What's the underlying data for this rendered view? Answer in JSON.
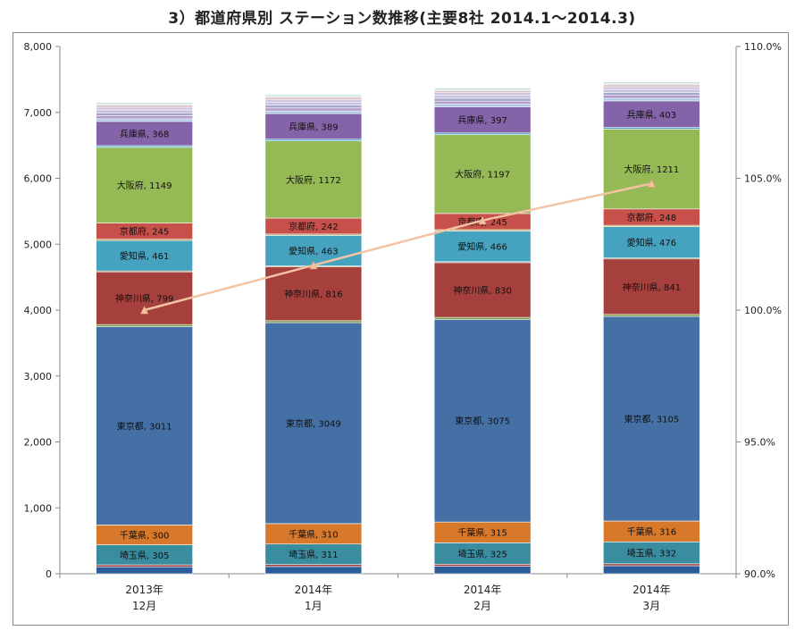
{
  "title": "3）都道府県別 ステーション数推移(主要8社 2014.1～2014.3)",
  "chart_data": {
    "type": "bar",
    "stacked": true,
    "categories": [
      [
        "2013年",
        "12月"
      ],
      [
        "2014年",
        "1月"
      ],
      [
        "2014年",
        "2月"
      ],
      [
        "2014年",
        "3月"
      ]
    ],
    "series": [
      {
        "name": "",
        "values": [
          105,
          110,
          115,
          122
        ],
        "color": "#2a5d9a"
      },
      {
        "name": "",
        "values": [
          30,
          30,
          30,
          30
        ],
        "color": "#9e3b38"
      },
      {
        "name": "埼玉県",
        "values": [
          305,
          311,
          325,
          332
        ],
        "color": "#3a8c9f",
        "show_label": true
      },
      {
        "name": "千葉県",
        "values": [
          300,
          310,
          315,
          316
        ],
        "color": "#d8782a",
        "show_label": true
      },
      {
        "name": "東京都",
        "values": [
          3011,
          3049,
          3075,
          3105
        ],
        "color": "#4470a6",
        "show_label": true
      },
      {
        "name": "",
        "values": [
          30,
          30,
          30,
          30
        ],
        "color": "#7a9a40"
      },
      {
        "name": "神奈川県",
        "values": [
          799,
          816,
          830,
          841
        ],
        "color": "#a6403c",
        "show_label": true
      },
      {
        "name": "",
        "values": [
          15,
          15,
          15,
          15
        ],
        "color": "#8a7a45"
      },
      {
        "name": "愛知県",
        "values": [
          461,
          463,
          466,
          476
        ],
        "color": "#45a3c0",
        "show_label": true
      },
      {
        "name": "",
        "values": [
          20,
          20,
          20,
          20
        ],
        "color": "#b89a40"
      },
      {
        "name": "京都府",
        "values": [
          245,
          242,
          245,
          248
        ],
        "color": "#c8504a",
        "show_label": true
      },
      {
        "name": "大阪府",
        "values": [
          1149,
          1172,
          1197,
          1211
        ],
        "color": "#95b955",
        "show_label": true
      },
      {
        "name": "",
        "values": [
          25,
          25,
          25,
          25
        ],
        "color": "#4aa7c8"
      },
      {
        "name": "兵庫県",
        "values": [
          368,
          389,
          397,
          403
        ],
        "color": "#8563a8",
        "show_label": true
      },
      {
        "name": "",
        "values": [
          40,
          40,
          40,
          40
        ],
        "color": "#a9c7e4"
      },
      {
        "name": "",
        "values": [
          45,
          45,
          45,
          45
        ],
        "color": "#b39bcb"
      },
      {
        "name": "",
        "values": [
          45,
          45,
          45,
          45
        ],
        "color": "#a6a6c8"
      },
      {
        "name": "",
        "values": [
          45,
          45,
          45,
          45
        ],
        "color": "#c9bfe0"
      },
      {
        "name": "",
        "values": [
          40,
          40,
          40,
          40
        ],
        "color": "#cfc3d9"
      },
      {
        "name": "",
        "values": [
          30,
          30,
          30,
          30
        ],
        "color": "#d8bcbc"
      },
      {
        "name": "",
        "values": [
          20,
          20,
          20,
          20
        ],
        "color": "#d8d8d8"
      },
      {
        "name": "",
        "values": [
          20,
          20,
          20,
          20
        ],
        "color": "#b8d8cf"
      }
    ],
    "line": {
      "name": "",
      "values": [
        100.0,
        101.7,
        103.4,
        104.8
      ],
      "color": "#f4c3a3"
    },
    "ylim": [
      0,
      8000
    ],
    "yticks": [
      "0",
      "1,000",
      "2,000",
      "3,000",
      "4,000",
      "5,000",
      "6,000",
      "7,000",
      "8,000"
    ],
    "y2lim": [
      90.0,
      110.0
    ],
    "y2ticks": [
      "90.0%",
      "95.0%",
      "100.0%",
      "105.0%",
      "110.0%"
    ],
    "grid": false,
    "legend": "none"
  }
}
